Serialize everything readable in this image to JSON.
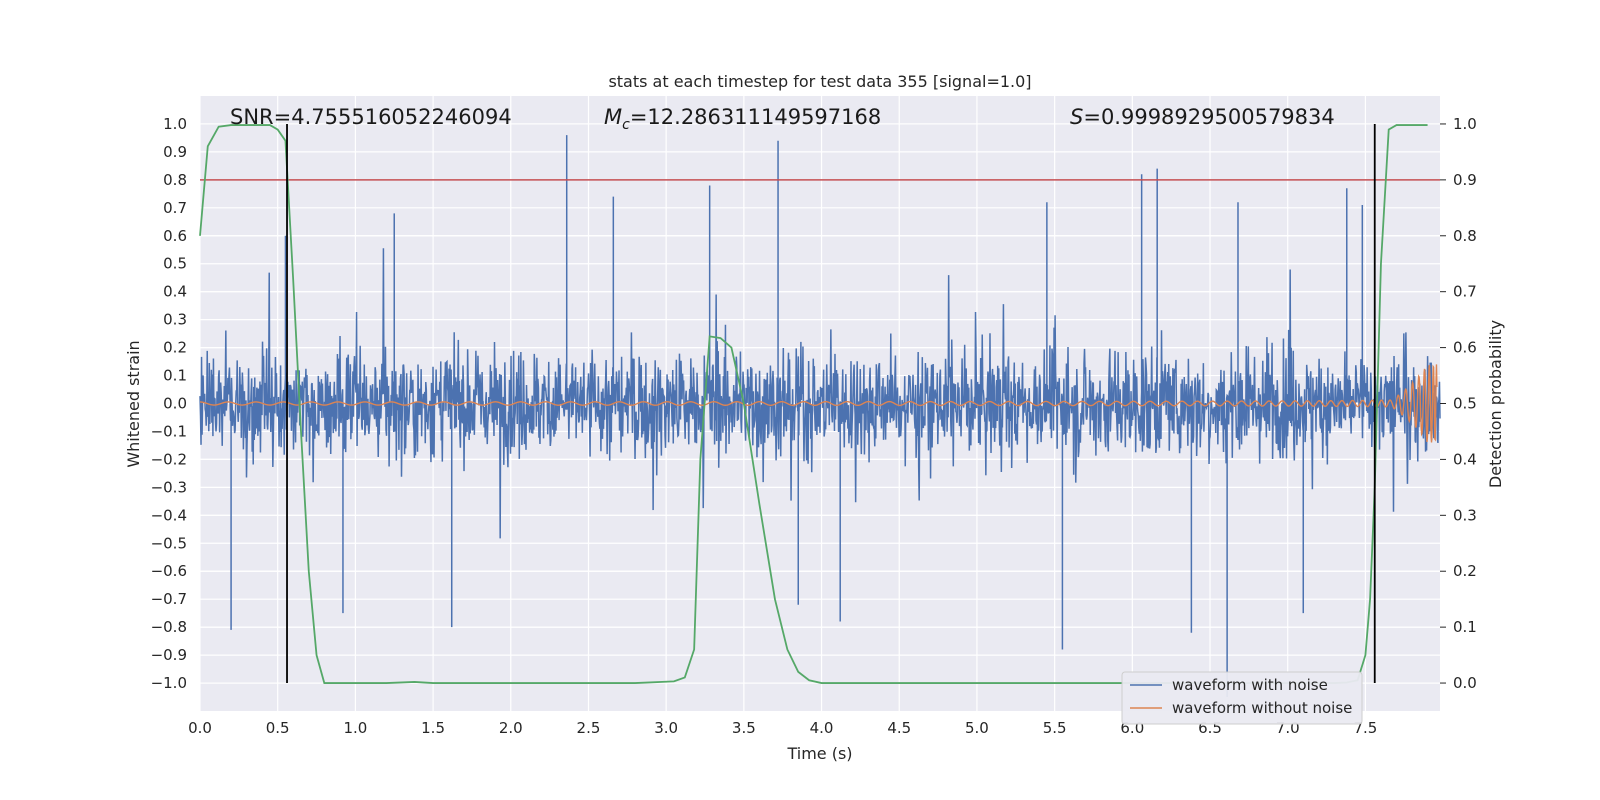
{
  "chart_data": {
    "type": "line",
    "title": "stats at each timestep for test data 355 [signal=1.0]",
    "xlabel": "Time (s)",
    "ylabel": "Whitened strain",
    "y2label": "Detection probability",
    "xlim": [
      0,
      7.98
    ],
    "ylim": [
      -1.1,
      1.1
    ],
    "y2lim": [
      -0.05,
      1.05
    ],
    "x_ticks": [
      "0.0",
      "0.5",
      "1.0",
      "1.5",
      "2.0",
      "2.5",
      "3.0",
      "3.5",
      "4.0",
      "4.5",
      "5.0",
      "5.5",
      "6.0",
      "6.5",
      "7.0",
      "7.5"
    ],
    "y_ticks": [
      "1.0",
      "0.9",
      "0.8",
      "0.7",
      "0.6",
      "0.5",
      "0.4",
      "0.3",
      "0.2",
      "0.1",
      "0.0",
      "−0.1",
      "−0.2",
      "−0.3",
      "−0.4",
      "−0.5",
      "−0.6",
      "−0.7",
      "−0.8",
      "−0.9",
      "−1.0"
    ],
    "y2_ticks": [
      "1.0",
      "0.9",
      "0.8",
      "0.7",
      "0.6",
      "0.5",
      "0.4",
      "0.3",
      "0.2",
      "0.1",
      "0.0"
    ],
    "grid": true,
    "legend_position": "lower-right",
    "annotations": {
      "snr": "SNR=4.755516052246094",
      "mc": "=12.286311149597168",
      "mc_symbol": "M",
      "mc_sub": "c",
      "s": "=0.9998929500579834",
      "s_symbol": "S"
    },
    "threshold_y2": 0.9,
    "vlines_x": [
      0.56,
      7.56
    ],
    "series": [
      {
        "name": "waveform with noise",
        "color": "#4c72b0",
        "description_values": "noisy whitened strain, dense band approx ±0.3, peaks to ±0.95",
        "spikes_up": [
          [
            0.55,
            0.6
          ],
          [
            2.36,
            0.96
          ],
          [
            3.28,
            0.78
          ],
          [
            3.72,
            0.94
          ],
          [
            6.06,
            0.82
          ],
          [
            6.16,
            0.84
          ],
          [
            7.38,
            0.77
          ],
          [
            7.48,
            0.71
          ],
          [
            1.25,
            0.68
          ],
          [
            2.66,
            0.74
          ],
          [
            5.45,
            0.72
          ],
          [
            6.68,
            0.72
          ]
        ],
        "spikes_down": [
          [
            0.2,
            -0.81
          ],
          [
            1.62,
            -0.8
          ],
          [
            4.12,
            -0.78
          ],
          [
            5.55,
            -0.88
          ],
          [
            6.61,
            -1.05
          ],
          [
            6.38,
            -0.82
          ],
          [
            0.92,
            -0.75
          ],
          [
            3.85,
            -0.72
          ],
          [
            7.1,
            -0.75
          ]
        ]
      },
      {
        "name": "waveform without noise",
        "color": "#dd8452",
        "description_values": "chirp signal, amplitude grows from 0.005 to 0.14 near t=7.95"
      },
      {
        "name": "",
        "color": "#55a868",
        "axis": "y2",
        "x": [
          0.0,
          0.05,
          0.12,
          0.2,
          0.3,
          0.38,
          0.45,
          0.5,
          0.55,
          0.6,
          0.65,
          0.7,
          0.75,
          0.8,
          0.85,
          0.9,
          1.0,
          1.2,
          1.38,
          1.5,
          1.8,
          2.0,
          2.5,
          2.8,
          3.05,
          3.12,
          3.18,
          3.22,
          3.28,
          3.35,
          3.42,
          3.5,
          3.6,
          3.7,
          3.78,
          3.85,
          3.92,
          4.0,
          4.5,
          5.0,
          5.5,
          6.0,
          6.5,
          7.0,
          7.3,
          7.38,
          7.45,
          7.5,
          7.53,
          7.56,
          7.6,
          7.65,
          7.7,
          7.8,
          7.9
        ],
        "values": [
          0.8,
          0.96,
          0.995,
          0.998,
          0.998,
          0.998,
          0.998,
          0.99,
          0.97,
          0.72,
          0.45,
          0.2,
          0.05,
          0.0,
          0.0,
          0.0,
          0.0,
          0.0,
          0.002,
          0.0,
          0.0,
          0.0,
          0.0,
          0.0,
          0.003,
          0.01,
          0.06,
          0.4,
          0.62,
          0.617,
          0.6,
          0.5,
          0.32,
          0.15,
          0.06,
          0.02,
          0.005,
          0.0,
          0.0,
          0.0,
          0.0,
          0.0,
          0.0,
          0.0,
          0.0,
          0.001,
          0.005,
          0.05,
          0.15,
          0.35,
          0.75,
          0.99,
          0.998,
          0.998,
          0.998
        ]
      }
    ]
  }
}
